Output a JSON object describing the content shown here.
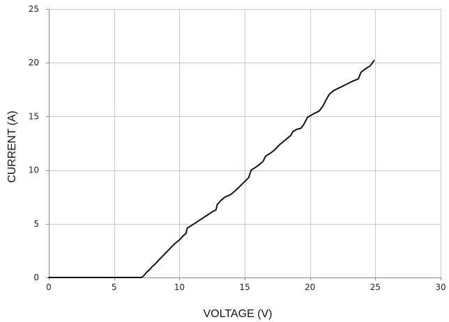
{
  "chart_data": {
    "type": "line",
    "title": "",
    "xlabel": "VOLTAGE (V)",
    "ylabel": "CURRENT (A)",
    "xlim": [
      0,
      30
    ],
    "ylim": [
      0,
      25
    ],
    "xticks": [
      0,
      5,
      10,
      15,
      20,
      25,
      30
    ],
    "yticks": [
      0,
      5,
      10,
      15,
      20,
      25
    ],
    "x_tick_labels": [
      "0",
      "5",
      "10",
      "15",
      "20",
      "25",
      "30"
    ],
    "y_tick_labels": [
      "0",
      "5",
      "10",
      "15",
      "20",
      "25"
    ],
    "grid": true,
    "legend": "none",
    "colors": {
      "line": "#111111",
      "grid": "#c8c8c8",
      "axis": "#8a8a8a"
    },
    "series": [
      {
        "x": [
          0,
          2,
          4,
          6,
          7.1,
          7.3,
          7.5,
          7.7,
          7.9,
          8.1,
          8.4,
          8.8,
          9.2,
          9.6,
          10.0,
          10.3,
          10.5,
          10.6,
          11.0,
          11.5,
          12.0,
          12.5,
          12.8,
          12.9,
          13.2,
          13.5,
          13.9,
          14.3,
          14.8,
          15.3,
          15.5,
          16.0,
          16.4,
          16.6,
          17.0,
          17.3,
          17.7,
          18.1,
          18.5,
          18.7,
          19.0,
          19.3,
          19.5,
          19.8,
          20.2,
          20.7,
          21.0,
          21.3,
          21.5,
          21.8,
          22.3,
          22.8,
          23.3,
          23.7,
          23.9,
          24.2,
          24.6,
          24.9
        ],
        "y": [
          0,
          0,
          0,
          0,
          0,
          0.2,
          0.5,
          0.7,
          1.0,
          1.2,
          1.6,
          2.1,
          2.6,
          3.1,
          3.5,
          3.9,
          4.1,
          4.6,
          4.9,
          5.3,
          5.7,
          6.1,
          6.3,
          6.8,
          7.2,
          7.5,
          7.7,
          8.1,
          8.7,
          9.3,
          10.0,
          10.4,
          10.8,
          11.3,
          11.6,
          11.9,
          12.4,
          12.8,
          13.2,
          13.6,
          13.8,
          13.9,
          14.2,
          14.9,
          15.2,
          15.5,
          16.0,
          16.7,
          17.1,
          17.4,
          17.7,
          18.0,
          18.3,
          18.5,
          19.1,
          19.4,
          19.7,
          20.2
        ]
      }
    ]
  }
}
